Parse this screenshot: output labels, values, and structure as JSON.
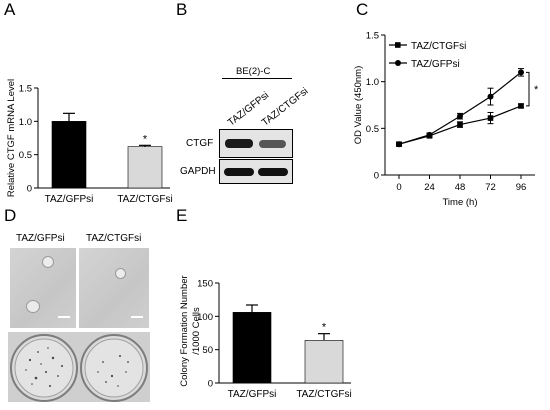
{
  "panels": {
    "A": {
      "letter": "A",
      "chart_data": {
        "type": "bar",
        "categories": [
          "TAZ/GFPsi",
          "TAZ/CTGFsi"
        ],
        "values": [
          1.0,
          0.62
        ],
        "errors": [
          0.12,
          0.02
        ],
        "colors": [
          "#000000",
          "#d9d9d9"
        ],
        "ylabel": "Relative CTGF mRNA Level",
        "ylim": [
          0,
          1.5
        ],
        "yticks": [
          "0",
          "0.5",
          "1.0",
          "1.5"
        ],
        "significance": "*"
      }
    },
    "B": {
      "letter": "B",
      "cell_line": "BE(2)-C",
      "lanes": [
        "TAZ/GFPsi",
        "TAZ/CTGFsi"
      ],
      "bands": [
        "CTGF",
        "GAPDH"
      ]
    },
    "C": {
      "letter": "C",
      "chart_data": {
        "type": "line",
        "x": [
          0,
          24,
          48,
          72,
          96
        ],
        "xlabel": "Time (h)",
        "ylabel": "OD Value (450nm)",
        "ylim": [
          0,
          1.5
        ],
        "yticks": [
          "0",
          "0.5",
          "1.0",
          "1.5"
        ],
        "xticks": [
          "0",
          "24",
          "48",
          "72",
          "96"
        ],
        "series": [
          {
            "name": "TAZ/CTGFsi",
            "marker": "square",
            "values": [
              0.33,
              0.42,
              0.54,
              0.61,
              0.74
            ],
            "errors": [
              0.02,
              0.02,
              0.03,
              0.06,
              0.02
            ]
          },
          {
            "name": "TAZ/GFPsi",
            "marker": "circle",
            "values": [
              0.33,
              0.43,
              0.63,
              0.84,
              1.1
            ],
            "errors": [
              0.02,
              0.02,
              0.03,
              0.09,
              0.04
            ]
          }
        ],
        "significance": "*"
      }
    },
    "D": {
      "letter": "D",
      "labels": [
        "TAZ/GFPsi",
        "TAZ/CTGFsi"
      ]
    },
    "E": {
      "letter": "E",
      "chart_data": {
        "type": "bar",
        "categories": [
          "TAZ/GFPsi",
          "TAZ/CTGFsi"
        ],
        "values": [
          106,
          64
        ],
        "errors": [
          11,
          10
        ],
        "colors": [
          "#000000",
          "#d9d9d9"
        ],
        "ylabel_lines": [
          "Colony Formation Number",
          "/1000 Cells"
        ],
        "ylim": [
          0,
          150
        ],
        "yticks": [
          "0",
          "50",
          "100",
          "150"
        ],
        "significance": "*"
      }
    }
  }
}
